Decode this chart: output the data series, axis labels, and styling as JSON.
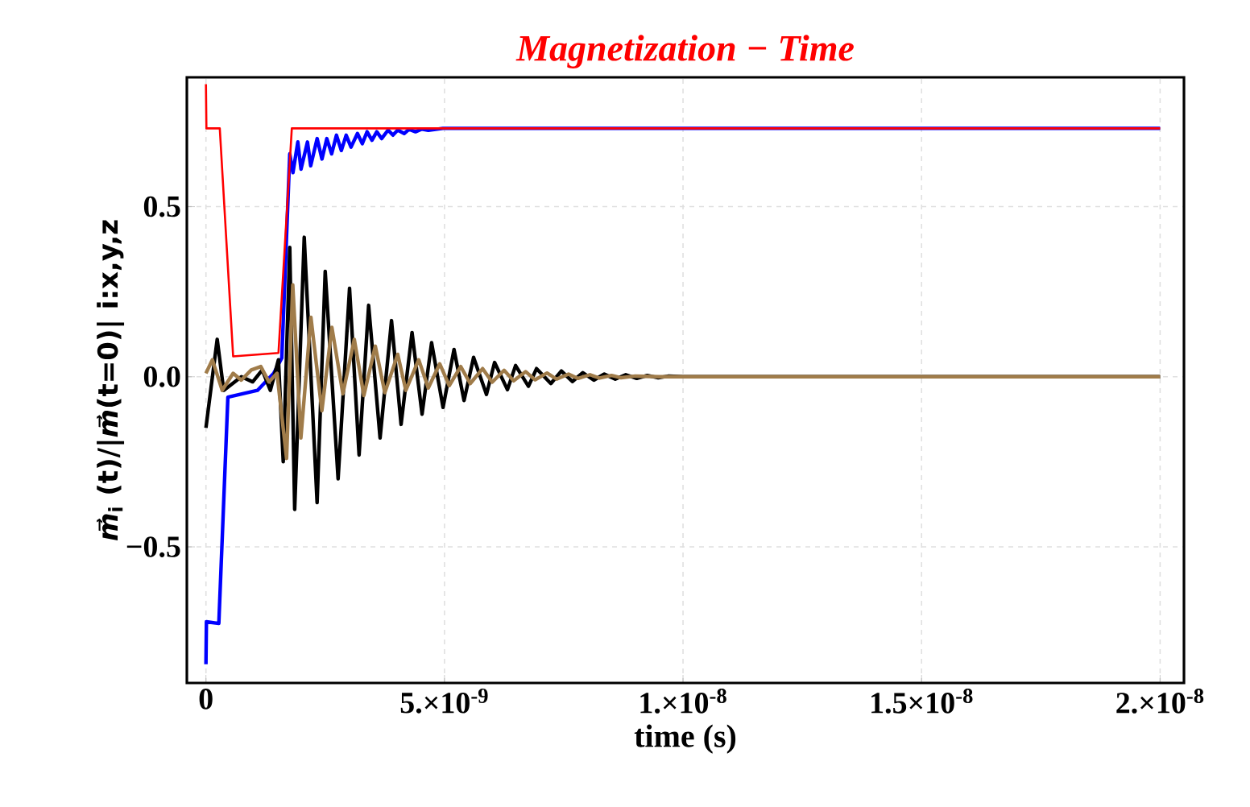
{
  "chart_data": {
    "type": "line",
    "title": "Magnetization − Time",
    "xlabel": "time (s)",
    "ylabel": "*m⃗*$_{i}$ (t)/|*m⃗*(t=0)|  i:x,y,z",
    "grid": true,
    "xlim": [
      -4e-10,
      2.05e-08
    ],
    "ylim": [
      -0.9,
      0.88
    ],
    "xticks": [
      0,
      {
        "value": 5e-09,
        "label": "5.×10$^{-9}$"
      },
      {
        "value": 1e-08,
        "label": "1.×10$^{-8}$"
      },
      {
        "value": 1.5e-08,
        "label": "1.5×10$^{-8}$"
      },
      {
        "value": 2e-08,
        "label": "2.×10$^{-8}$"
      }
    ],
    "yticks": [
      {
        "value": -0.5,
        "label": "−0.5"
      },
      {
        "value": 0,
        "label": "0.0"
      },
      {
        "value": 0.5,
        "label": "0.5"
      }
    ],
    "series": [
      {
        "color": "#0000ff",
        "x": [
          0,
          1e-11,
          2.7e-10,
          4.6e-10,
          1.08e-09,
          1.42e-09,
          1.59e-09,
          1.757e-09,
          1.824e-09,
          1.926e-09,
          1.993e-09,
          2.128e-09,
          2.196e-09,
          2.331e-09,
          2.432e-09,
          2.534e-09,
          2.635e-09,
          2.736e-09,
          2.838e-09,
          2.939e-09,
          3.041e-09,
          3.176e-09,
          3.277e-09,
          3.378e-09,
          3.48e-09,
          3.581e-09,
          3.682e-09,
          3.818e-09,
          3.919e-09,
          4.02e-09,
          4.155e-09,
          4.257e-09,
          4.392e-09,
          4.527e-09,
          4.662e-09,
          4.966e-09,
          2e-08
        ],
        "values": [
          -0.845,
          -0.72,
          -0.725,
          -0.06,
          -0.04,
          0.01,
          0.055,
          0.655,
          0.6,
          0.69,
          0.61,
          0.69,
          0.62,
          0.7,
          0.64,
          0.7,
          0.655,
          0.71,
          0.665,
          0.71,
          0.675,
          0.715,
          0.685,
          0.72,
          0.695,
          0.72,
          0.7,
          0.725,
          0.71,
          0.725,
          0.715,
          0.727,
          0.72,
          0.728,
          0.724,
          0.73,
          0.73
        ]
      },
      {
        "color": "#000000",
        "x": [
          0,
          2.36e-10,
          3.72e-10,
          7.43e-10,
          9.8e-10,
          1.18e-09,
          1.35e-09,
          1.52e-09,
          1.62e-09,
          1.757e-09,
          1.86e-09,
          2.06e-09,
          2.33e-09,
          2.5e-09,
          2.77e-09,
          3.01e-09,
          3.21e-09,
          3.41e-09,
          3.65e-09,
          3.89e-09,
          4.09e-09,
          4.32e-09,
          4.53e-09,
          4.73e-09,
          4.97e-09,
          5.2e-09,
          5.41e-09,
          5.61e-09,
          5.88e-09,
          6.05e-09,
          6.32e-09,
          6.49e-09,
          6.76e-09,
          6.93e-09,
          7.23e-09,
          7.45e-09,
          7.68e-09,
          7.9e-09,
          8.13e-09,
          8.35e-09,
          8.58e-09,
          8.8e-09,
          9.03e-09,
          9.25e-09,
          9.48e-09,
          9.7e-09,
          1e-08,
          2e-08
        ],
        "values": [
          -0.15,
          0.11,
          -0.04,
          0,
          -0.015,
          0.02,
          -0.04,
          0.05,
          -0.25,
          0.38,
          -0.39,
          0.41,
          -0.37,
          0.31,
          -0.3,
          0.26,
          -0.23,
          0.21,
          -0.18,
          0.165,
          -0.14,
          0.13,
          -0.11,
          0.1,
          -0.09,
          0.08,
          -0.07,
          0.057,
          -0.052,
          0.042,
          -0.038,
          0.033,
          -0.028,
          0.024,
          -0.02,
          0.017,
          -0.014,
          0.012,
          -0.01,
          0.008,
          -0.007,
          0.006,
          -0.005,
          0.004,
          -0.003,
          0.002,
          0,
          0
        ]
      },
      {
        "color": "#a07c4a",
        "x": [
          0,
          1.35e-10,
          3.4e-10,
          5.7e-10,
          7.4e-10,
          9.5e-10,
          1.15e-09,
          1.32e-09,
          1.49e-09,
          1.69e-09,
          1.82e-09,
          1.99e-09,
          2.2e-09,
          2.43e-09,
          2.64e-09,
          2.87e-09,
          3.11e-09,
          3.31e-09,
          3.55e-09,
          3.75e-09,
          4.02e-09,
          4.19e-09,
          4.46e-09,
          4.66e-09,
          4.9e-09,
          5.1e-09,
          5.34e-09,
          5.54e-09,
          5.8e-09,
          6e-09,
          6.25e-09,
          6.45e-09,
          6.7e-09,
          6.9e-09,
          7.15e-09,
          7.35e-09,
          7.6e-09,
          7.8e-09,
          8.05e-09,
          8.25e-09,
          8.5e-09,
          8.7e-09,
          9e-09,
          9.5e-09,
          2e-08
        ],
        "values": [
          0.01,
          0.05,
          -0.04,
          0.01,
          -0.01,
          0.02,
          0.03,
          -0.015,
          0.01,
          -0.24,
          0.27,
          -0.18,
          0.175,
          -0.1,
          0.145,
          -0.05,
          0.11,
          -0.055,
          0.09,
          -0.047,
          0.066,
          -0.04,
          0.05,
          -0.033,
          0.038,
          -0.026,
          0.03,
          -0.02,
          0.024,
          -0.016,
          0.019,
          -0.012,
          0.015,
          -0.009,
          0.011,
          -0.007,
          0.008,
          -0.005,
          0.006,
          -0.004,
          0.004,
          -0.003,
          0.002,
          0,
          0
        ]
      },
      {
        "color": "#ff0000",
        "x": [
          0,
          1e-11,
          2.9e-10,
          5.7e-10,
          1.52e-09,
          1.8e-09,
          2e-08
        ],
        "values": [
          0.86,
          0.73,
          0.73,
          0.06,
          0.07,
          0.73,
          0.73
        ]
      }
    ]
  }
}
